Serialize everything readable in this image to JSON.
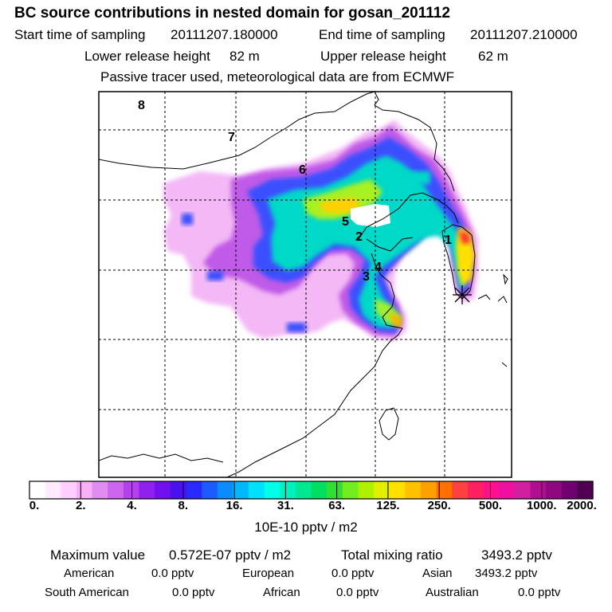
{
  "title": "BC  source contributions in nested domain for gosan_201112",
  "sampling": {
    "start_label": "Start time of sampling",
    "start_value": "20111207.180000",
    "end_label": "End time of sampling",
    "end_value": "20111207.210000"
  },
  "release": {
    "lower_label": "Lower release height",
    "lower_value": "82 m",
    "upper_label": "Upper release height",
    "upper_value": "62 m"
  },
  "note": "Passive tracer used, meteorological data are from ECMWF",
  "map": {
    "day_markers": [
      "8",
      "7",
      "6",
      "5",
      "2",
      "1",
      "4",
      "3"
    ],
    "receptor_icon": "asterisk-receptor-marker"
  },
  "colorbar": {
    "ticks": [
      "0.",
      "2.",
      "4.",
      "8.",
      "16.",
      "31.",
      "63.",
      "125.",
      "250.",
      "500.",
      "1000.",
      "2000."
    ],
    "units": "10E-10 pptv / m2",
    "colors": [
      "#ffffff",
      "#ffeaff",
      "#ffd0ff",
      "#f7b0f7",
      "#e08cf0",
      "#cc66ee",
      "#b440ee",
      "#9020ee",
      "#7010ee",
      "#4a10ee",
      "#2828ff",
      "#1a5aff",
      "#0a8cff",
      "#00b8ff",
      "#00e0ff",
      "#00ffe8",
      "#00f0c0",
      "#00e890",
      "#00e060",
      "#30e030",
      "#70ee20",
      "#b0f000",
      "#e0f000",
      "#ffe000",
      "#ffc000",
      "#ffa000",
      "#ff7000",
      "#ff4040",
      "#ff2060",
      "#ff1090",
      "#f010a0",
      "#d020a0",
      "#b01090",
      "#900880",
      "#700070",
      "#500050"
    ]
  },
  "stats": {
    "max_label": "Maximum value",
    "max_value": "0.572E-07 pptv / m2",
    "total_label": "Total mixing ratio",
    "total_value": "3493.2 pptv",
    "regions": [
      {
        "name": "American",
        "value": "0.0 pptv"
      },
      {
        "name": "European",
        "value": "0.0 pptv"
      },
      {
        "name": "Asian",
        "value": "3493.2 pptv"
      },
      {
        "name": "South American",
        "value": "0.0 pptv"
      },
      {
        "name": "African",
        "value": "0.0 pptv"
      },
      {
        "name": "Australian",
        "value": "0.0 pptv"
      }
    ]
  }
}
